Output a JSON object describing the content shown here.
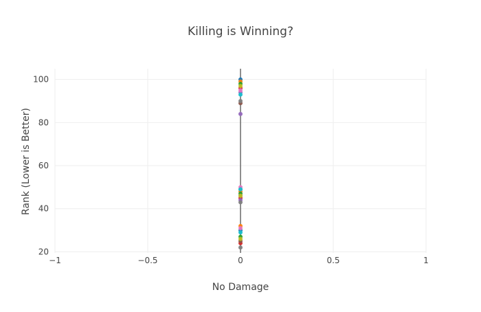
{
  "chart_data": {
    "type": "scatter",
    "title": "Killing is Winning?",
    "xlabel": "No Damage",
    "ylabel": "Rank (Lower is Better)",
    "xlim": [
      -1,
      1
    ],
    "ylim": [
      19.5,
      105
    ],
    "x_ticks": [
      -1,
      -0.5,
      0,
      0.5,
      1
    ],
    "x_tick_labels": [
      "−1",
      "−0.5",
      "0",
      "0.5",
      "1"
    ],
    "y_ticks": [
      20,
      40,
      60,
      80,
      100
    ],
    "y_tick_labels": [
      "20",
      "40",
      "60",
      "80",
      "100"
    ],
    "grid": true,
    "zero_line_x": 0,
    "series": [
      {
        "color": "#1f77b4",
        "points": [
          {
            "x": 0,
            "y": 100
          },
          {
            "x": 0,
            "y": 49
          },
          {
            "x": 0,
            "y": 30
          }
        ]
      },
      {
        "color": "#ff7f0e",
        "points": [
          {
            "x": 0,
            "y": 99
          },
          {
            "x": 0,
            "y": 48
          },
          {
            "x": 0,
            "y": 32
          }
        ]
      },
      {
        "color": "#2ca02c",
        "points": [
          {
            "x": 0,
            "y": 98
          },
          {
            "x": 0,
            "y": 47
          },
          {
            "x": 0,
            "y": 27
          }
        ]
      },
      {
        "color": "#d62728",
        "points": [
          {
            "x": 0,
            "y": 96
          },
          {
            "x": 0,
            "y": 45
          },
          {
            "x": 0,
            "y": 24
          }
        ]
      },
      {
        "color": "#9467bd",
        "points": [
          {
            "x": 0,
            "y": 94
          },
          {
            "x": 0,
            "y": 84
          },
          {
            "x": 0,
            "y": 44
          }
        ]
      },
      {
        "color": "#8c564b",
        "points": [
          {
            "x": 0,
            "y": 89
          },
          {
            "x": 0,
            "y": 46
          },
          {
            "x": 0,
            "y": 25
          }
        ]
      },
      {
        "color": "#e377c2",
        "points": [
          {
            "x": 0,
            "y": 95
          },
          {
            "x": 0,
            "y": 31
          },
          {
            "x": 0,
            "y": 50
          }
        ]
      },
      {
        "color": "#7f7f7f",
        "points": [
          {
            "x": 0,
            "y": 90
          },
          {
            "x": 0,
            "y": 43
          },
          {
            "x": 0,
            "y": 22
          }
        ]
      },
      {
        "color": "#bcbd22",
        "points": [
          {
            "x": 0,
            "y": 97
          },
          {
            "x": 0,
            "y": 46
          },
          {
            "x": 0,
            "y": 26
          }
        ]
      },
      {
        "color": "#17becf",
        "points": [
          {
            "x": 0,
            "y": 93
          },
          {
            "x": 0,
            "y": 49
          },
          {
            "x": 0,
            "y": 29
          }
        ]
      }
    ]
  }
}
